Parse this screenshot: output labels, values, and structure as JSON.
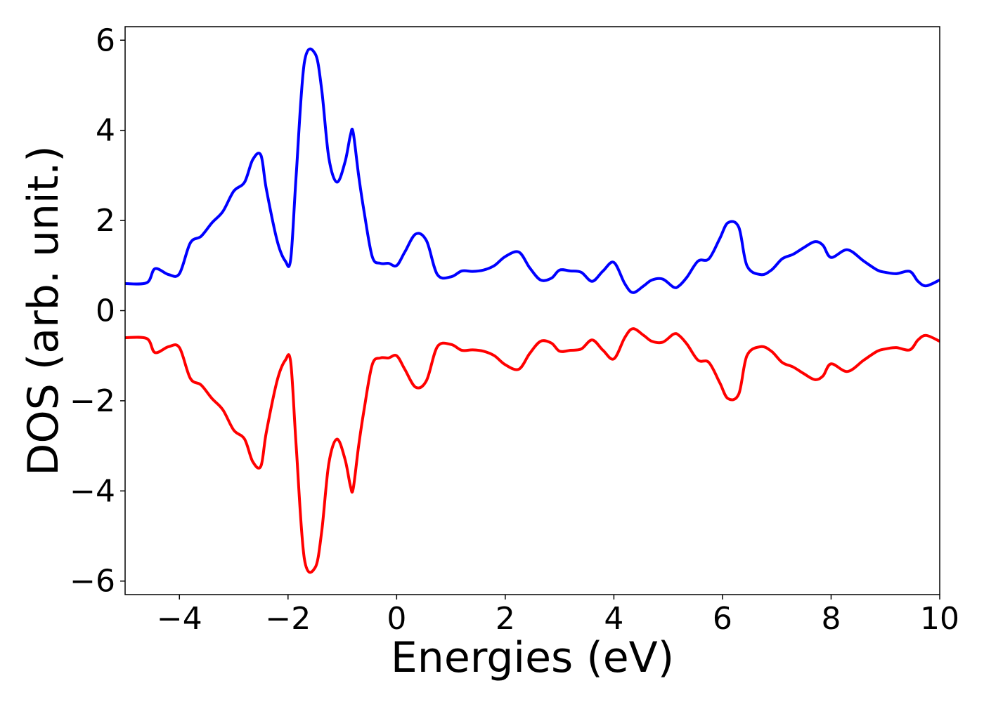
{
  "chart_data": {
    "type": "line",
    "title": "",
    "xlabel": "Energies (eV)",
    "ylabel": "DOS (arb. unit.)",
    "xlim": [
      -5,
      10
    ],
    "ylim": [
      -6.3,
      6.3
    ],
    "xticks": [
      -4,
      -2,
      0,
      2,
      4,
      6,
      8,
      10
    ],
    "xtick_labels": [
      "−4",
      "−2",
      "0",
      "2",
      "4",
      "6",
      "8",
      "10"
    ],
    "yticks": [
      -6,
      -4,
      -2,
      0,
      2,
      4,
      6
    ],
    "ytick_labels": [
      "−6",
      "−4",
      "−2",
      "0",
      "2",
      "4",
      "6"
    ],
    "grid": false,
    "legend": "none",
    "series": [
      {
        "color": "#0000ff",
        "x": [
          -5.0,
          -4.6,
          -4.45,
          -4.2,
          -4.0,
          -3.8,
          -3.6,
          -3.4,
          -3.2,
          -3.0,
          -2.8,
          -2.65,
          -2.5,
          -2.4,
          -2.2,
          -2.05,
          -1.95,
          -1.85,
          -1.7,
          -1.5,
          -1.38,
          -1.25,
          -1.1,
          -0.95,
          -0.85,
          -0.8,
          -0.7,
          -0.6,
          -0.45,
          -0.3,
          -0.15,
          0.0,
          0.15,
          0.35,
          0.55,
          0.75,
          1.0,
          1.2,
          1.4,
          1.6,
          1.8,
          2.0,
          2.25,
          2.45,
          2.65,
          2.85,
          3.0,
          3.2,
          3.4,
          3.6,
          3.8,
          4.0,
          4.2,
          4.35,
          4.55,
          4.7,
          4.9,
          5.1,
          5.2,
          5.35,
          5.55,
          5.75,
          5.95,
          6.1,
          6.3,
          6.45,
          6.7,
          6.9,
          7.1,
          7.3,
          7.5,
          7.7,
          7.85,
          8.0,
          8.3,
          8.6,
          8.85,
          9.0,
          9.2,
          9.45,
          9.6,
          9.75,
          10.0
        ],
        "y": [
          0.6,
          0.62,
          0.93,
          0.8,
          0.82,
          1.5,
          1.65,
          1.95,
          2.2,
          2.65,
          2.85,
          3.35,
          3.45,
          2.7,
          1.55,
          1.1,
          1.15,
          3.0,
          5.5,
          5.7,
          4.9,
          3.4,
          2.85,
          3.3,
          3.9,
          3.95,
          3.0,
          2.2,
          1.2,
          1.05,
          1.05,
          1.0,
          1.3,
          1.7,
          1.55,
          0.8,
          0.75,
          0.88,
          0.87,
          0.9,
          1.0,
          1.2,
          1.3,
          0.95,
          0.68,
          0.72,
          0.9,
          0.88,
          0.85,
          0.65,
          0.88,
          1.07,
          0.6,
          0.4,
          0.55,
          0.68,
          0.7,
          0.52,
          0.55,
          0.75,
          1.1,
          1.15,
          1.6,
          1.95,
          1.85,
          1.0,
          0.8,
          0.9,
          1.15,
          1.25,
          1.4,
          1.53,
          1.45,
          1.18,
          1.35,
          1.1,
          0.9,
          0.85,
          0.82,
          0.87,
          0.65,
          0.55,
          0.68
        ]
      },
      {
        "color": "#ff0000",
        "x": [
          -5.0,
          -4.6,
          -4.45,
          -4.2,
          -4.0,
          -3.8,
          -3.6,
          -3.4,
          -3.2,
          -3.0,
          -2.8,
          -2.65,
          -2.5,
          -2.4,
          -2.2,
          -2.05,
          -1.95,
          -1.85,
          -1.7,
          -1.5,
          -1.38,
          -1.25,
          -1.1,
          -0.95,
          -0.85,
          -0.8,
          -0.7,
          -0.6,
          -0.45,
          -0.3,
          -0.15,
          0.0,
          0.15,
          0.35,
          0.55,
          0.75,
          1.0,
          1.2,
          1.4,
          1.6,
          1.8,
          2.0,
          2.25,
          2.45,
          2.65,
          2.85,
          3.0,
          3.2,
          3.4,
          3.6,
          3.8,
          4.0,
          4.2,
          4.35,
          4.55,
          4.7,
          4.9,
          5.1,
          5.2,
          5.35,
          5.55,
          5.75,
          5.95,
          6.1,
          6.3,
          6.45,
          6.7,
          6.9,
          7.1,
          7.3,
          7.5,
          7.7,
          7.85,
          8.0,
          8.3,
          8.6,
          8.85,
          9.0,
          9.2,
          9.45,
          9.6,
          9.75,
          10.0
        ],
        "y": [
          -0.6,
          -0.62,
          -0.93,
          -0.8,
          -0.82,
          -1.5,
          -1.65,
          -1.95,
          -2.2,
          -2.65,
          -2.85,
          -3.35,
          -3.45,
          -2.7,
          -1.55,
          -1.1,
          -1.15,
          -3.0,
          -5.5,
          -5.7,
          -4.9,
          -3.4,
          -2.85,
          -3.3,
          -3.9,
          -3.95,
          -3.0,
          -2.2,
          -1.2,
          -1.05,
          -1.05,
          -1.0,
          -1.3,
          -1.7,
          -1.55,
          -0.8,
          -0.75,
          -0.88,
          -0.87,
          -0.9,
          -1.0,
          -1.2,
          -1.3,
          -0.95,
          -0.68,
          -0.72,
          -0.9,
          -0.88,
          -0.85,
          -0.65,
          -0.88,
          -1.07,
          -0.6,
          -0.4,
          -0.55,
          -0.68,
          -0.7,
          -0.52,
          -0.55,
          -0.75,
          -1.1,
          -1.15,
          -1.6,
          -1.95,
          -1.85,
          -1.0,
          -0.8,
          -0.9,
          -1.15,
          -1.25,
          -1.4,
          -1.53,
          -1.45,
          -1.18,
          -1.35,
          -1.1,
          -0.9,
          -0.85,
          -0.82,
          -0.87,
          -0.65,
          -0.55,
          -0.68
        ]
      }
    ]
  }
}
